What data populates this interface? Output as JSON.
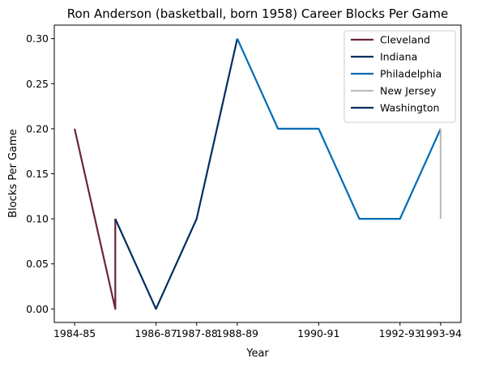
{
  "chart_data": {
    "type": "line",
    "title": "Ron Anderson (basketball, born 1958) Career Blocks Per Game",
    "xlabel": "Year",
    "ylabel": "Blocks Per Game",
    "x_tick_labels": [
      "1984-85",
      "1986-87",
      "1987-88",
      "1988-89",
      "1990-91",
      "1992-93",
      "1993-94"
    ],
    "x_tick_positions": [
      0,
      2,
      3,
      4,
      6,
      8,
      9
    ],
    "xlim": [
      -0.5,
      9.5
    ],
    "ylim": [
      -0.015,
      0.315
    ],
    "y_ticks": [
      0.0,
      0.05,
      0.1,
      0.15,
      0.2,
      0.25,
      0.3
    ],
    "y_tick_labels": [
      "0.00",
      "0.05",
      "0.10",
      "0.15",
      "0.20",
      "0.25",
      "0.30"
    ],
    "grid": false,
    "legend_position": "top-right",
    "series": [
      {
        "name": "Cleveland",
        "color": "#6b2340",
        "points": [
          [
            0,
            0.2
          ],
          [
            1,
            0.0
          ],
          [
            1,
            0.1
          ]
        ]
      },
      {
        "name": "Indiana",
        "color": "#002d62",
        "points": [
          [
            1,
            0.1
          ],
          [
            2,
            0.0
          ],
          [
            3,
            0.1
          ],
          [
            4,
            0.3
          ]
        ]
      },
      {
        "name": "Philadelphia",
        "color": "#006bb6",
        "points": [
          [
            4,
            0.3
          ],
          [
            5,
            0.2
          ],
          [
            6,
            0.2
          ],
          [
            7,
            0.1
          ],
          [
            8,
            0.1
          ],
          [
            9,
            0.2
          ]
        ]
      },
      {
        "name": "New Jersey",
        "color": "#bdbdbd",
        "points": [
          [
            9,
            0.2
          ],
          [
            9,
            0.1
          ]
        ]
      },
      {
        "name": "Washington",
        "color": "#002b5c",
        "points": []
      }
    ]
  }
}
